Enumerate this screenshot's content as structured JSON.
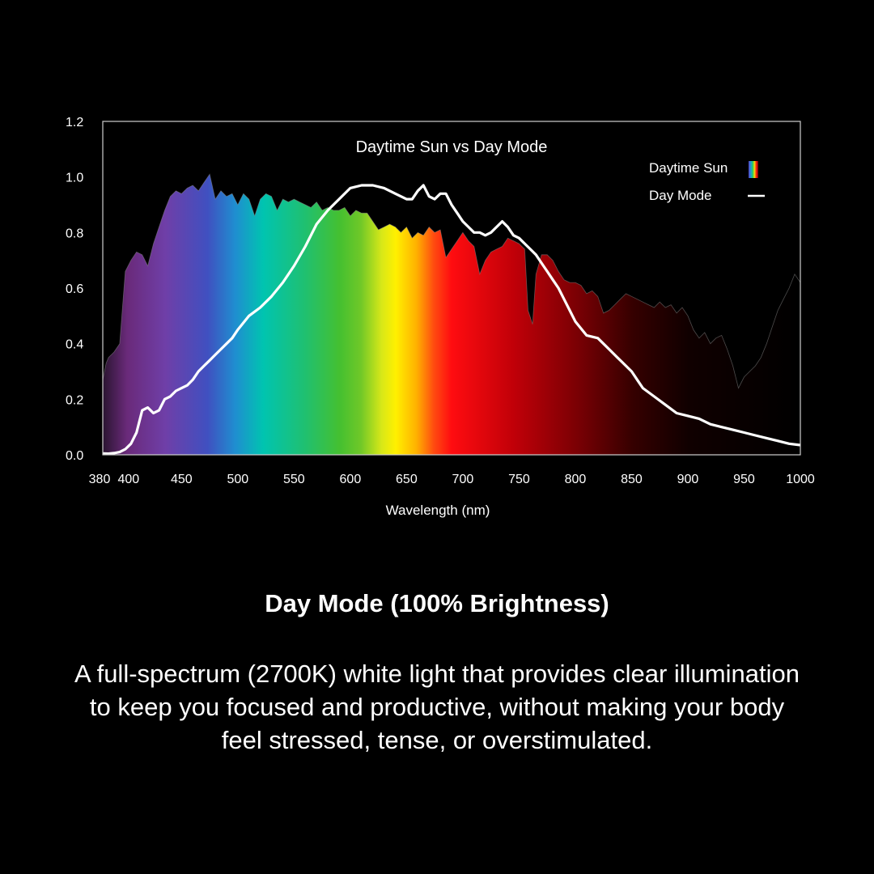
{
  "caption": {
    "title": "Day Mode (100% Brightness)",
    "body": "A full-spectrum (2700K) white light that provides clear illumination to keep you focused and productive, without making your body feel stressed, tense, or overstimulated."
  },
  "chart_data": {
    "type": "area",
    "title": "Daytime Sun vs Day Mode",
    "xlabel": "Wavelength (nm)",
    "ylabel": "",
    "xlim": [
      380,
      1000
    ],
    "ylim": [
      0,
      1.2
    ],
    "x_ticks": [
      380,
      400,
      450,
      500,
      550,
      600,
      650,
      700,
      750,
      800,
      850,
      900,
      950,
      1000
    ],
    "y_ticks": [
      0.0,
      0.2,
      0.4,
      0.6,
      0.8,
      1.0,
      1.2
    ],
    "y_tick_labels": [
      "0.0",
      "0.2",
      "0.4",
      "0.6",
      "0.8",
      "1.0",
      "1.2"
    ],
    "legend_position": "top-right",
    "grid": false,
    "series": [
      {
        "name": "Daytime Sun",
        "style": "spectrum-filled-area",
        "x": [
          380,
          383,
          385,
          390,
          395,
          400,
          405,
          410,
          415,
          420,
          425,
          430,
          435,
          440,
          445,
          450,
          455,
          460,
          465,
          470,
          475,
          480,
          485,
          490,
          495,
          500,
          505,
          510,
          515,
          520,
          525,
          530,
          535,
          540,
          545,
          550,
          555,
          560,
          565,
          570,
          575,
          580,
          585,
          590,
          595,
          600,
          605,
          610,
          615,
          620,
          625,
          630,
          635,
          640,
          645,
          650,
          655,
          660,
          665,
          670,
          675,
          680,
          685,
          690,
          695,
          700,
          705,
          710,
          715,
          720,
          725,
          730,
          735,
          740,
          745,
          750,
          755,
          758,
          762,
          765,
          770,
          775,
          780,
          785,
          790,
          795,
          800,
          805,
          810,
          815,
          820,
          825,
          830,
          835,
          840,
          845,
          850,
          855,
          860,
          865,
          870,
          875,
          880,
          885,
          890,
          895,
          900,
          905,
          910,
          915,
          920,
          925,
          930,
          935,
          940,
          945,
          950,
          955,
          960,
          965,
          970,
          975,
          980,
          985,
          990,
          995,
          1000
        ],
        "y": [
          0.27,
          0.33,
          0.35,
          0.37,
          0.4,
          0.66,
          0.7,
          0.73,
          0.72,
          0.68,
          0.76,
          0.82,
          0.88,
          0.93,
          0.95,
          0.94,
          0.96,
          0.97,
          0.95,
          0.98,
          1.01,
          0.92,
          0.95,
          0.93,
          0.94,
          0.9,
          0.94,
          0.92,
          0.86,
          0.92,
          0.94,
          0.93,
          0.88,
          0.92,
          0.91,
          0.92,
          0.91,
          0.9,
          0.89,
          0.91,
          0.88,
          0.89,
          0.88,
          0.88,
          0.89,
          0.86,
          0.88,
          0.87,
          0.87,
          0.84,
          0.81,
          0.82,
          0.83,
          0.82,
          0.8,
          0.82,
          0.78,
          0.8,
          0.79,
          0.82,
          0.8,
          0.81,
          0.71,
          0.74,
          0.77,
          0.8,
          0.77,
          0.75,
          0.65,
          0.7,
          0.73,
          0.74,
          0.75,
          0.78,
          0.77,
          0.76,
          0.74,
          0.52,
          0.47,
          0.65,
          0.72,
          0.72,
          0.7,
          0.66,
          0.63,
          0.62,
          0.62,
          0.61,
          0.58,
          0.59,
          0.57,
          0.51,
          0.52,
          0.54,
          0.56,
          0.58,
          0.57,
          0.56,
          0.55,
          0.54,
          0.53,
          0.55,
          0.53,
          0.54,
          0.51,
          0.53,
          0.5,
          0.45,
          0.42,
          0.44,
          0.4,
          0.42,
          0.43,
          0.38,
          0.32,
          0.24,
          0.28,
          0.3,
          0.32,
          0.35,
          0.4,
          0.46,
          0.52,
          0.56,
          0.6,
          0.65,
          0.62
        ]
      },
      {
        "name": "Day Mode",
        "style": "white-line",
        "x": [
          380,
          385,
          390,
          395,
          400,
          405,
          410,
          415,
          420,
          425,
          430,
          435,
          440,
          445,
          450,
          455,
          460,
          465,
          470,
          475,
          480,
          485,
          490,
          495,
          500,
          510,
          520,
          530,
          540,
          550,
          560,
          570,
          580,
          590,
          600,
          610,
          620,
          630,
          640,
          650,
          655,
          660,
          665,
          670,
          675,
          680,
          685,
          690,
          695,
          700,
          705,
          710,
          715,
          720,
          725,
          730,
          735,
          740,
          745,
          750,
          755,
          760,
          765,
          770,
          775,
          780,
          785,
          790,
          795,
          800,
          810,
          820,
          830,
          840,
          850,
          855,
          860,
          870,
          880,
          890,
          900,
          910,
          920,
          930,
          940,
          950,
          960,
          970,
          980,
          990,
          1000
        ],
        "y": [
          0.005,
          0.004,
          0.006,
          0.01,
          0.02,
          0.04,
          0.08,
          0.16,
          0.17,
          0.15,
          0.16,
          0.2,
          0.21,
          0.23,
          0.24,
          0.25,
          0.27,
          0.3,
          0.32,
          0.34,
          0.36,
          0.38,
          0.4,
          0.42,
          0.45,
          0.5,
          0.53,
          0.57,
          0.62,
          0.68,
          0.75,
          0.83,
          0.88,
          0.92,
          0.96,
          0.97,
          0.97,
          0.96,
          0.94,
          0.92,
          0.92,
          0.95,
          0.97,
          0.93,
          0.92,
          0.94,
          0.94,
          0.9,
          0.87,
          0.84,
          0.82,
          0.8,
          0.8,
          0.79,
          0.8,
          0.82,
          0.84,
          0.82,
          0.79,
          0.78,
          0.76,
          0.74,
          0.72,
          0.69,
          0.66,
          0.63,
          0.6,
          0.56,
          0.52,
          0.48,
          0.43,
          0.42,
          0.38,
          0.34,
          0.3,
          0.27,
          0.24,
          0.21,
          0.18,
          0.15,
          0.14,
          0.13,
          0.11,
          0.1,
          0.09,
          0.08,
          0.07,
          0.06,
          0.05,
          0.04,
          0.035
        ]
      }
    ]
  }
}
